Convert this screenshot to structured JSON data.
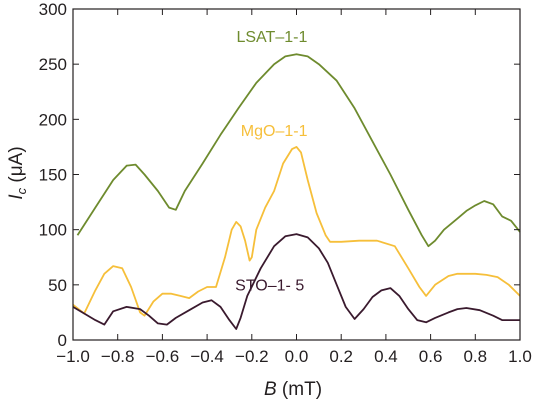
{
  "chart_data": {
    "type": "line",
    "xlabel": {
      "var": "B",
      "unit": " (mT)"
    },
    "ylabel": {
      "var": "I",
      "sub": "c",
      "unit": " (μA)"
    },
    "xlim": [
      -1.0,
      1.0
    ],
    "ylim": [
      0,
      300
    ],
    "xticks": [
      -1.0,
      -0.8,
      -0.6,
      -0.4,
      -0.2,
      0.0,
      0.2,
      0.4,
      0.6,
      0.8,
      1.0
    ],
    "xtick_labels": [
      "−1.0",
      "−0.8",
      "−0.6",
      "−0.4",
      "−0.2",
      "0.0",
      "0.2",
      "0.4",
      "0.6",
      "0.8",
      "1.0"
    ],
    "yticks": [
      0,
      50,
      100,
      150,
      200,
      250,
      300
    ],
    "ytick_labels": [
      "0",
      "50",
      "100",
      "150",
      "200",
      "250",
      "300"
    ],
    "grid": false,
    "legend": "inline labels",
    "series": [
      {
        "name": "LSAT–1-1",
        "color": "#6e8b2e",
        "label_at": [
          -0.11,
          270
        ],
        "x": [
          -0.98,
          -0.9,
          -0.82,
          -0.76,
          -0.72,
          -0.68,
          -0.62,
          -0.57,
          -0.54,
          -0.5,
          -0.42,
          -0.34,
          -0.26,
          -0.18,
          -0.1,
          -0.05,
          0.0,
          0.05,
          0.1,
          0.18,
          0.26,
          0.34,
          0.42,
          0.5,
          0.56,
          0.59,
          0.62,
          0.66,
          0.72,
          0.76,
          0.8,
          0.84,
          0.88,
          0.92,
          0.96,
          1.0
        ],
        "y": [
          95,
          120,
          145,
          158,
          159,
          150,
          135,
          120,
          118,
          135,
          160,
          186,
          210,
          233,
          250,
          257,
          259,
          257,
          250,
          235,
          210,
          180,
          150,
          118,
          95,
          85,
          90,
          100,
          110,
          117,
          122,
          126,
          123,
          112,
          108,
          98
        ]
      },
      {
        "name": "MgO–1-1",
        "color": "#f6bf3a",
        "label_at": [
          -0.1,
          185
        ],
        "x": [
          -1.0,
          -0.95,
          -0.9,
          -0.86,
          -0.82,
          -0.78,
          -0.74,
          -0.7,
          -0.68,
          -0.64,
          -0.6,
          -0.56,
          -0.52,
          -0.48,
          -0.44,
          -0.4,
          -0.36,
          -0.32,
          -0.29,
          -0.27,
          -0.25,
          -0.23,
          -0.21,
          -0.2,
          -0.18,
          -0.14,
          -0.1,
          -0.06,
          -0.02,
          0.0,
          0.02,
          0.05,
          0.09,
          0.13,
          0.15,
          0.2,
          0.28,
          0.36,
          0.44,
          0.5,
          0.55,
          0.58,
          0.62,
          0.68,
          0.72,
          0.8,
          0.85,
          0.9,
          0.95,
          1.0
        ],
        "y": [
          32,
          24,
          45,
          60,
          67,
          65,
          48,
          25,
          22,
          35,
          42,
          42,
          40,
          38,
          44,
          48,
          48,
          75,
          100,
          107,
          103,
          90,
          72,
          75,
          100,
          120,
          135,
          160,
          173,
          175,
          170,
          145,
          115,
          95,
          89,
          89,
          90,
          90,
          85,
          65,
          48,
          40,
          50,
          58,
          60,
          60,
          59,
          57,
          50,
          40
        ]
      },
      {
        "name": "STO–1- 5",
        "color": "#3a1a2e",
        "label_at": [
          -0.12,
          45
        ],
        "x": [
          -1.0,
          -0.95,
          -0.9,
          -0.86,
          -0.82,
          -0.76,
          -0.7,
          -0.66,
          -0.62,
          -0.58,
          -0.54,
          -0.48,
          -0.42,
          -0.38,
          -0.34,
          -0.3,
          -0.27,
          -0.25,
          -0.22,
          -0.16,
          -0.1,
          -0.05,
          0.0,
          0.05,
          0.1,
          0.14,
          0.18,
          0.22,
          0.26,
          0.3,
          0.34,
          0.38,
          0.42,
          0.46,
          0.5,
          0.54,
          0.58,
          0.62,
          0.68,
          0.72,
          0.76,
          0.82,
          0.88,
          0.92,
          0.96,
          1.0
        ],
        "y": [
          30,
          24,
          18,
          14,
          26,
          30,
          28,
          22,
          15,
          14,
          20,
          27,
          34,
          36,
          30,
          18,
          10,
          20,
          40,
          65,
          85,
          94,
          96,
          93,
          83,
          70,
          50,
          30,
          19,
          28,
          39,
          45,
          47,
          40,
          28,
          18,
          16,
          20,
          25,
          28,
          29,
          27,
          22,
          18,
          18,
          18
        ]
      }
    ]
  }
}
